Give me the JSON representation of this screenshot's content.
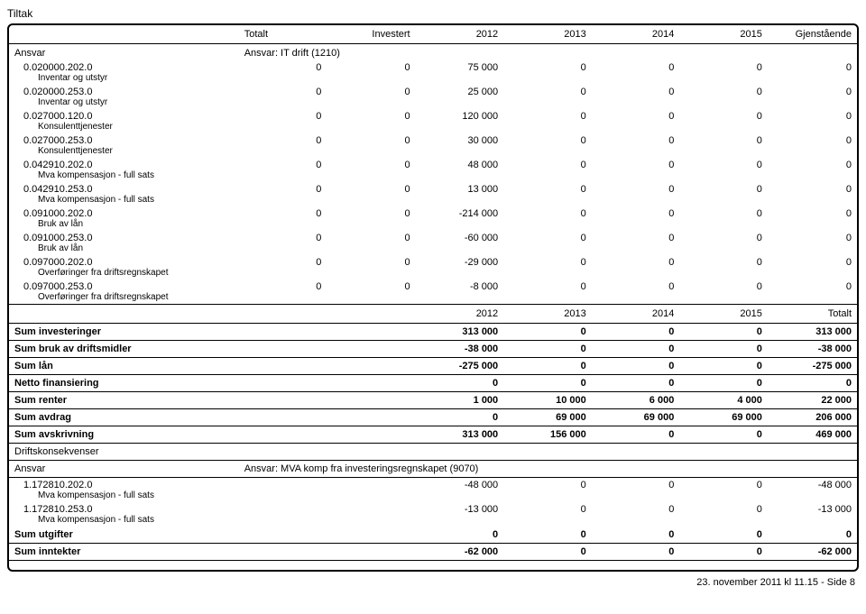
{
  "title": "Tiltak",
  "headers": [
    "Totalt",
    "Investert",
    "2012",
    "2013",
    "2014",
    "2015",
    "Gjenstående"
  ],
  "ansvar1": {
    "label": "Ansvar",
    "value": "Ansvar: IT drift (1210)"
  },
  "rows": [
    {
      "code": "0.020000.202.0",
      "desc": "Inventar og utstyr",
      "v": [
        "0",
        "0",
        "75 000",
        "0",
        "0",
        "0",
        "0"
      ]
    },
    {
      "code": "0.020000.253.0",
      "desc": "Inventar og utstyr",
      "v": [
        "0",
        "0",
        "25 000",
        "0",
        "0",
        "0",
        "0"
      ]
    },
    {
      "code": "0.027000.120.0",
      "desc": "Konsulenttjenester",
      "v": [
        "0",
        "0",
        "120 000",
        "0",
        "0",
        "0",
        "0"
      ]
    },
    {
      "code": "0.027000.253.0",
      "desc": "Konsulenttjenester",
      "v": [
        "0",
        "0",
        "30 000",
        "0",
        "0",
        "0",
        "0"
      ]
    },
    {
      "code": "0.042910.202.0",
      "desc": "Mva kompensasjon - full sats",
      "v": [
        "0",
        "0",
        "48 000",
        "0",
        "0",
        "0",
        "0"
      ]
    },
    {
      "code": "0.042910.253.0",
      "desc": "Mva kompensasjon - full sats",
      "v": [
        "0",
        "0",
        "13 000",
        "0",
        "0",
        "0",
        "0"
      ]
    },
    {
      "code": "0.091000.202.0",
      "desc": "Bruk av lån",
      "v": [
        "0",
        "0",
        "-214 000",
        "0",
        "0",
        "0",
        "0"
      ]
    },
    {
      "code": "0.091000.253.0",
      "desc": "Bruk av lån",
      "v": [
        "0",
        "0",
        "-60 000",
        "0",
        "0",
        "0",
        "0"
      ]
    },
    {
      "code": "0.097000.202.0",
      "desc": "Overføringer fra driftsregnskapet",
      "v": [
        "0",
        "0",
        "-29 000",
        "0",
        "0",
        "0",
        "0"
      ]
    },
    {
      "code": "0.097000.253.0",
      "desc": "Overføringer fra driftsregnskapet",
      "v": [
        "0",
        "0",
        "-8 000",
        "0",
        "0",
        "0",
        "0"
      ]
    }
  ],
  "midHeaders": [
    "2012",
    "2013",
    "2014",
    "2015",
    "Totalt"
  ],
  "sums": [
    {
      "label": "Sum investeringer",
      "v": [
        "313 000",
        "0",
        "0",
        "0",
        "313 000"
      ]
    },
    {
      "label": "Sum bruk av driftsmidler",
      "v": [
        "-38 000",
        "0",
        "0",
        "0",
        "-38 000"
      ]
    },
    {
      "label": "Sum lån",
      "v": [
        "-275 000",
        "0",
        "0",
        "0",
        "-275 000"
      ]
    },
    {
      "label": "Netto finansiering",
      "v": [
        "0",
        "0",
        "0",
        "0",
        "0"
      ]
    },
    {
      "label": "Sum renter",
      "v": [
        "1 000",
        "10 000",
        "6 000",
        "4 000",
        "22 000"
      ]
    },
    {
      "label": "Sum avdrag",
      "v": [
        "0",
        "69 000",
        "69 000",
        "69 000",
        "206 000"
      ]
    },
    {
      "label": "Sum avskrivning",
      "v": [
        "313 000",
        "156 000",
        "0",
        "0",
        "469 000"
      ]
    }
  ],
  "drift": "Driftskonsekvenser",
  "ansvar2": {
    "label": "Ansvar",
    "value": "Ansvar: MVA komp fra investeringsregnskapet (9070)"
  },
  "rows2": [
    {
      "code": "1.172810.202.0",
      "desc": "Mva kompensasjon - full sats",
      "v": [
        "-48 000",
        "0",
        "0",
        "0",
        "-48 000"
      ]
    },
    {
      "code": "1.172810.253.0",
      "desc": "Mva kompensasjon - full sats",
      "v": [
        "-13 000",
        "0",
        "0",
        "0",
        "-13 000"
      ]
    }
  ],
  "sums2": [
    {
      "label": "Sum utgifter",
      "v": [
        "0",
        "0",
        "0",
        "0",
        "0"
      ]
    },
    {
      "label": "Sum inntekter",
      "v": [
        "-62 000",
        "0",
        "0",
        "0",
        "-62 000"
      ]
    }
  ],
  "footer": "23. november 2011 kl 11.15 - Side 8"
}
